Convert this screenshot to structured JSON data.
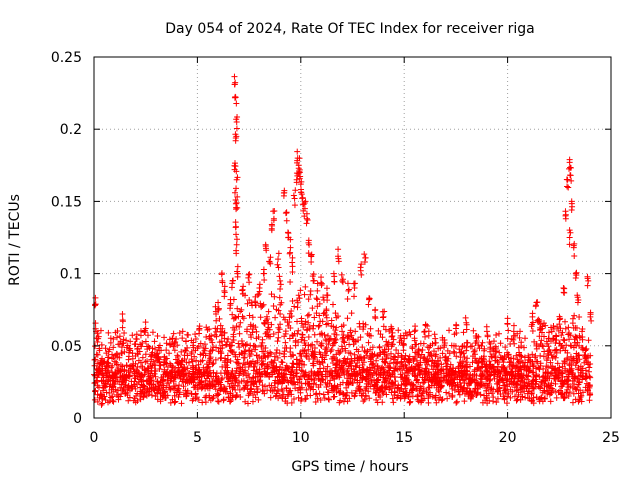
{
  "chart_data": {
    "type": "scatter",
    "title": "Day 054 of 2024, Rate Of TEC Index for receiver riga",
    "xlabel": "GPS time / hours",
    "ylabel": "ROTI / TECUs",
    "xlim": [
      0,
      25
    ],
    "ylim": [
      0,
      0.25
    ],
    "xticks": [
      0,
      5,
      10,
      15,
      20,
      25
    ],
    "xtick_labels": [
      "0",
      "5",
      "10",
      "15",
      "20",
      "25"
    ],
    "yticks": [
      0,
      0.05,
      0.1,
      0.15,
      0.2,
      0.25
    ],
    "ytick_labels": [
      "0",
      "0.05",
      "0.1",
      "0.15",
      "0.2",
      "0.25"
    ],
    "grid": true,
    "marker": "+",
    "color": "#ff0000",
    "x_data_range": [
      0,
      24
    ],
    "baseline_band": [
      0.01,
      0.04
    ],
    "series": [
      {
        "name": "ROTI",
        "points": [
          [
            6.8,
            0.231
          ],
          [
            6.85,
            0.222
          ],
          [
            6.9,
            0.205
          ],
          [
            6.85,
            0.192
          ],
          [
            6.8,
            0.172
          ],
          [
            6.9,
            0.165
          ],
          [
            6.85,
            0.151
          ],
          [
            6.9,
            0.149
          ],
          [
            6.85,
            0.132
          ],
          [
            6.9,
            0.12
          ],
          [
            6.95,
            0.1
          ],
          [
            6.7,
            0.095
          ],
          [
            6.6,
            0.082
          ],
          [
            6.2,
            0.095
          ],
          [
            6.0,
            0.08
          ],
          [
            5.9,
            0.072
          ],
          [
            6.3,
            0.088
          ],
          [
            7.2,
            0.086
          ],
          [
            7.5,
            0.094
          ],
          [
            7.8,
            0.08
          ],
          [
            8.0,
            0.09
          ],
          [
            8.2,
            0.1
          ],
          [
            8.3,
            0.12
          ],
          [
            8.5,
            0.108
          ],
          [
            8.6,
            0.134
          ],
          [
            8.7,
            0.138
          ],
          [
            8.9,
            0.11
          ],
          [
            9.0,
            0.095
          ],
          [
            9.2,
            0.156
          ],
          [
            9.3,
            0.142
          ],
          [
            9.4,
            0.128
          ],
          [
            9.5,
            0.118
          ],
          [
            9.6,
            0.105
          ],
          [
            9.7,
            0.152
          ],
          [
            9.8,
            0.165
          ],
          [
            9.85,
            0.18
          ],
          [
            9.9,
            0.175
          ],
          [
            9.95,
            0.17
          ],
          [
            10.0,
            0.162
          ],
          [
            10.05,
            0.155
          ],
          [
            10.1,
            0.148
          ],
          [
            10.2,
            0.145
          ],
          [
            10.3,
            0.138
          ],
          [
            10.4,
            0.12
          ],
          [
            10.5,
            0.108
          ],
          [
            10.6,
            0.095
          ],
          [
            10.8,
            0.088
          ],
          [
            11.0,
            0.092
          ],
          [
            11.3,
            0.085
          ],
          [
            11.6,
            0.1
          ],
          [
            11.8,
            0.112
          ],
          [
            12.0,
            0.095
          ],
          [
            12.3,
            0.088
          ],
          [
            12.6,
            0.09
          ],
          [
            12.9,
            0.102
          ],
          [
            13.1,
            0.108
          ],
          [
            13.3,
            0.082
          ],
          [
            13.6,
            0.075
          ],
          [
            14.0,
            0.07
          ],
          [
            14.4,
            0.062
          ],
          [
            15.0,
            0.055
          ],
          [
            15.5,
            0.06
          ],
          [
            16.0,
            0.06
          ],
          [
            16.5,
            0.055
          ],
          [
            17.5,
            0.062
          ],
          [
            18.0,
            0.066
          ],
          [
            19.0,
            0.06
          ],
          [
            20.0,
            0.065
          ],
          [
            20.3,
            0.06
          ],
          [
            21.2,
            0.07
          ],
          [
            21.4,
            0.08
          ],
          [
            21.6,
            0.065
          ],
          [
            22.0,
            0.055
          ],
          [
            22.5,
            0.065
          ],
          [
            22.7,
            0.09
          ],
          [
            22.8,
            0.14
          ],
          [
            22.9,
            0.165
          ],
          [
            23.0,
            0.177
          ],
          [
            23.05,
            0.168
          ],
          [
            23.1,
            0.15
          ],
          [
            23.0,
            0.125
          ],
          [
            23.2,
            0.118
          ],
          [
            23.3,
            0.1
          ],
          [
            23.4,
            0.08
          ],
          [
            23.6,
            0.06
          ],
          [
            23.9,
            0.095
          ],
          [
            24.0,
            0.07
          ],
          [
            0.05,
            0.078
          ],
          [
            0.1,
            0.06
          ],
          [
            0.2,
            0.055
          ],
          [
            0.4,
            0.01
          ],
          [
            1.4,
            0.067
          ],
          [
            2.5,
            0.062
          ],
          [
            3.8,
            0.055
          ],
          [
            5.1,
            0.062
          ]
        ]
      }
    ]
  }
}
